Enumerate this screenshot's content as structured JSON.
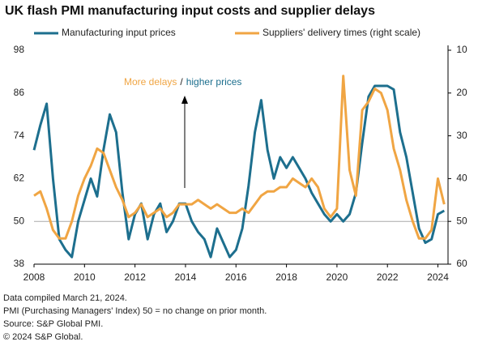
{
  "chart_data": {
    "type": "line",
    "title": "UK flash PMI manufacturing input costs and supplier delays",
    "x": [
      2008,
      2008.25,
      2008.5,
      2008.75,
      2009,
      2009.25,
      2009.5,
      2009.75,
      2010,
      2010.25,
      2010.5,
      2010.75,
      2011,
      2011.25,
      2011.5,
      2011.75,
      2012,
      2012.25,
      2012.5,
      2012.75,
      2013,
      2013.25,
      2013.5,
      2013.75,
      2014,
      2014.25,
      2014.5,
      2014.75,
      2015,
      2015.25,
      2015.5,
      2015.75,
      2016,
      2016.25,
      2016.5,
      2016.75,
      2017,
      2017.25,
      2017.5,
      2017.75,
      2018,
      2018.25,
      2018.5,
      2018.75,
      2019,
      2019.25,
      2019.5,
      2019.75,
      2020,
      2020.25,
      2020.5,
      2020.75,
      2021,
      2021.25,
      2021.5,
      2021.75,
      2022,
      2022.25,
      2022.5,
      2022.75,
      2023,
      2023.25,
      2023.5,
      2023.75,
      2024,
      2024.25
    ],
    "series": [
      {
        "name": "Manufacturing input prices",
        "color": "#1d6f8e",
        "values": [
          70,
          77,
          83,
          62,
          45,
          42,
          40,
          50,
          56,
          62,
          57,
          70,
          80,
          75,
          58,
          45,
          52,
          55,
          45,
          52,
          55,
          47,
          50,
          55,
          55,
          50,
          47,
          45,
          40,
          48,
          44,
          40,
          42,
          48,
          60,
          75,
          84,
          70,
          62,
          68,
          65,
          68,
          65,
          62,
          58,
          55,
          52,
          50,
          52,
          50,
          52,
          58,
          72,
          85,
          88,
          88,
          88,
          87,
          75,
          68,
          58,
          48,
          44,
          45,
          52,
          53
        ]
      },
      {
        "name": "Suppliers' delivery times (right scale)",
        "color": "#f0a543",
        "axis": "y2",
        "values": [
          44,
          43,
          47,
          52,
          54,
          54,
          50,
          44,
          40,
          37,
          33,
          34,
          38,
          42,
          45,
          49,
          48,
          46,
          49,
          48,
          47,
          49,
          48,
          46,
          46,
          46,
          45,
          46,
          47,
          46,
          47,
          48,
          48,
          47,
          48,
          46,
          44,
          43,
          43,
          42,
          42,
          40,
          41,
          42,
          40,
          42,
          47,
          49,
          47,
          16,
          38,
          44,
          24,
          22,
          19,
          20,
          24,
          33,
          38,
          45,
          50,
          54,
          54,
          52,
          40,
          46
        ]
      }
    ],
    "xlim": [
      2008,
      2024.4
    ],
    "xticks": [
      2008,
      2010,
      2012,
      2014,
      2016,
      2018,
      2020,
      2022,
      2024
    ],
    "ylim": [
      38,
      98
    ],
    "yticks": [
      38,
      50,
      62,
      74,
      86,
      98
    ],
    "y2lim": [
      60,
      10
    ],
    "y2ticks": [
      10,
      20,
      30,
      40,
      50,
      60
    ],
    "hline": 50,
    "annotation": {
      "delays": "More delays",
      "separator": "/",
      "prices": "higher prices"
    },
    "notes": [
      "Data compiled March 21, 2024.",
      "PMI (Purchasing Managers' Index) 50 = no change on prior month.",
      "Source: S&P Global PMI.",
      "© 2024 S&P Global."
    ]
  }
}
